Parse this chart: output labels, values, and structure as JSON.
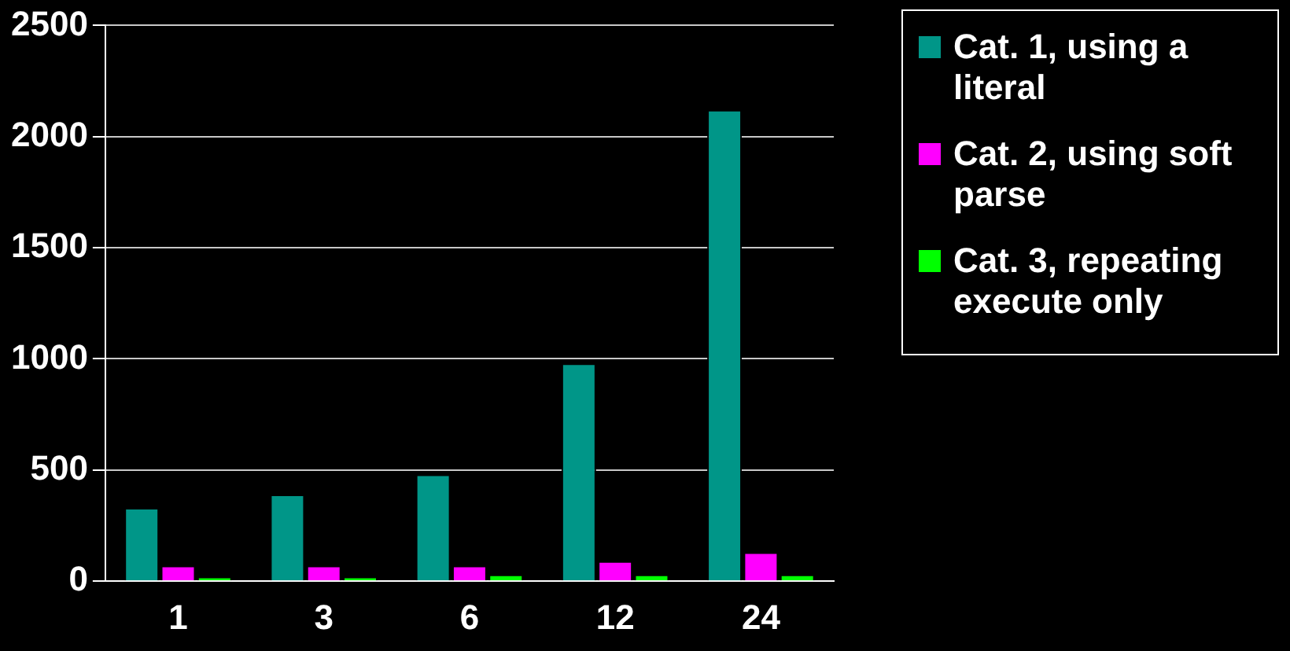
{
  "chart_data": {
    "type": "bar",
    "categories": [
      "1",
      "3",
      "6",
      "12",
      "24"
    ],
    "series": [
      {
        "name": "Cat. 1, using a literal",
        "color": "#009688",
        "values": [
          330,
          390,
          480,
          980,
          2120
        ]
      },
      {
        "name": "Cat. 2, using soft parse",
        "color": "#ff00ff",
        "values": [
          70,
          70,
          70,
          90,
          130
        ]
      },
      {
        "name": "Cat. 3, repeating execute only",
        "color": "#00ff00",
        "values": [
          20,
          20,
          30,
          30,
          30
        ]
      }
    ],
    "ylim": [
      0,
      2500
    ],
    "yticks": [
      0,
      500,
      1000,
      1500,
      2000,
      2500
    ],
    "grid": "y",
    "legend": "right"
  }
}
